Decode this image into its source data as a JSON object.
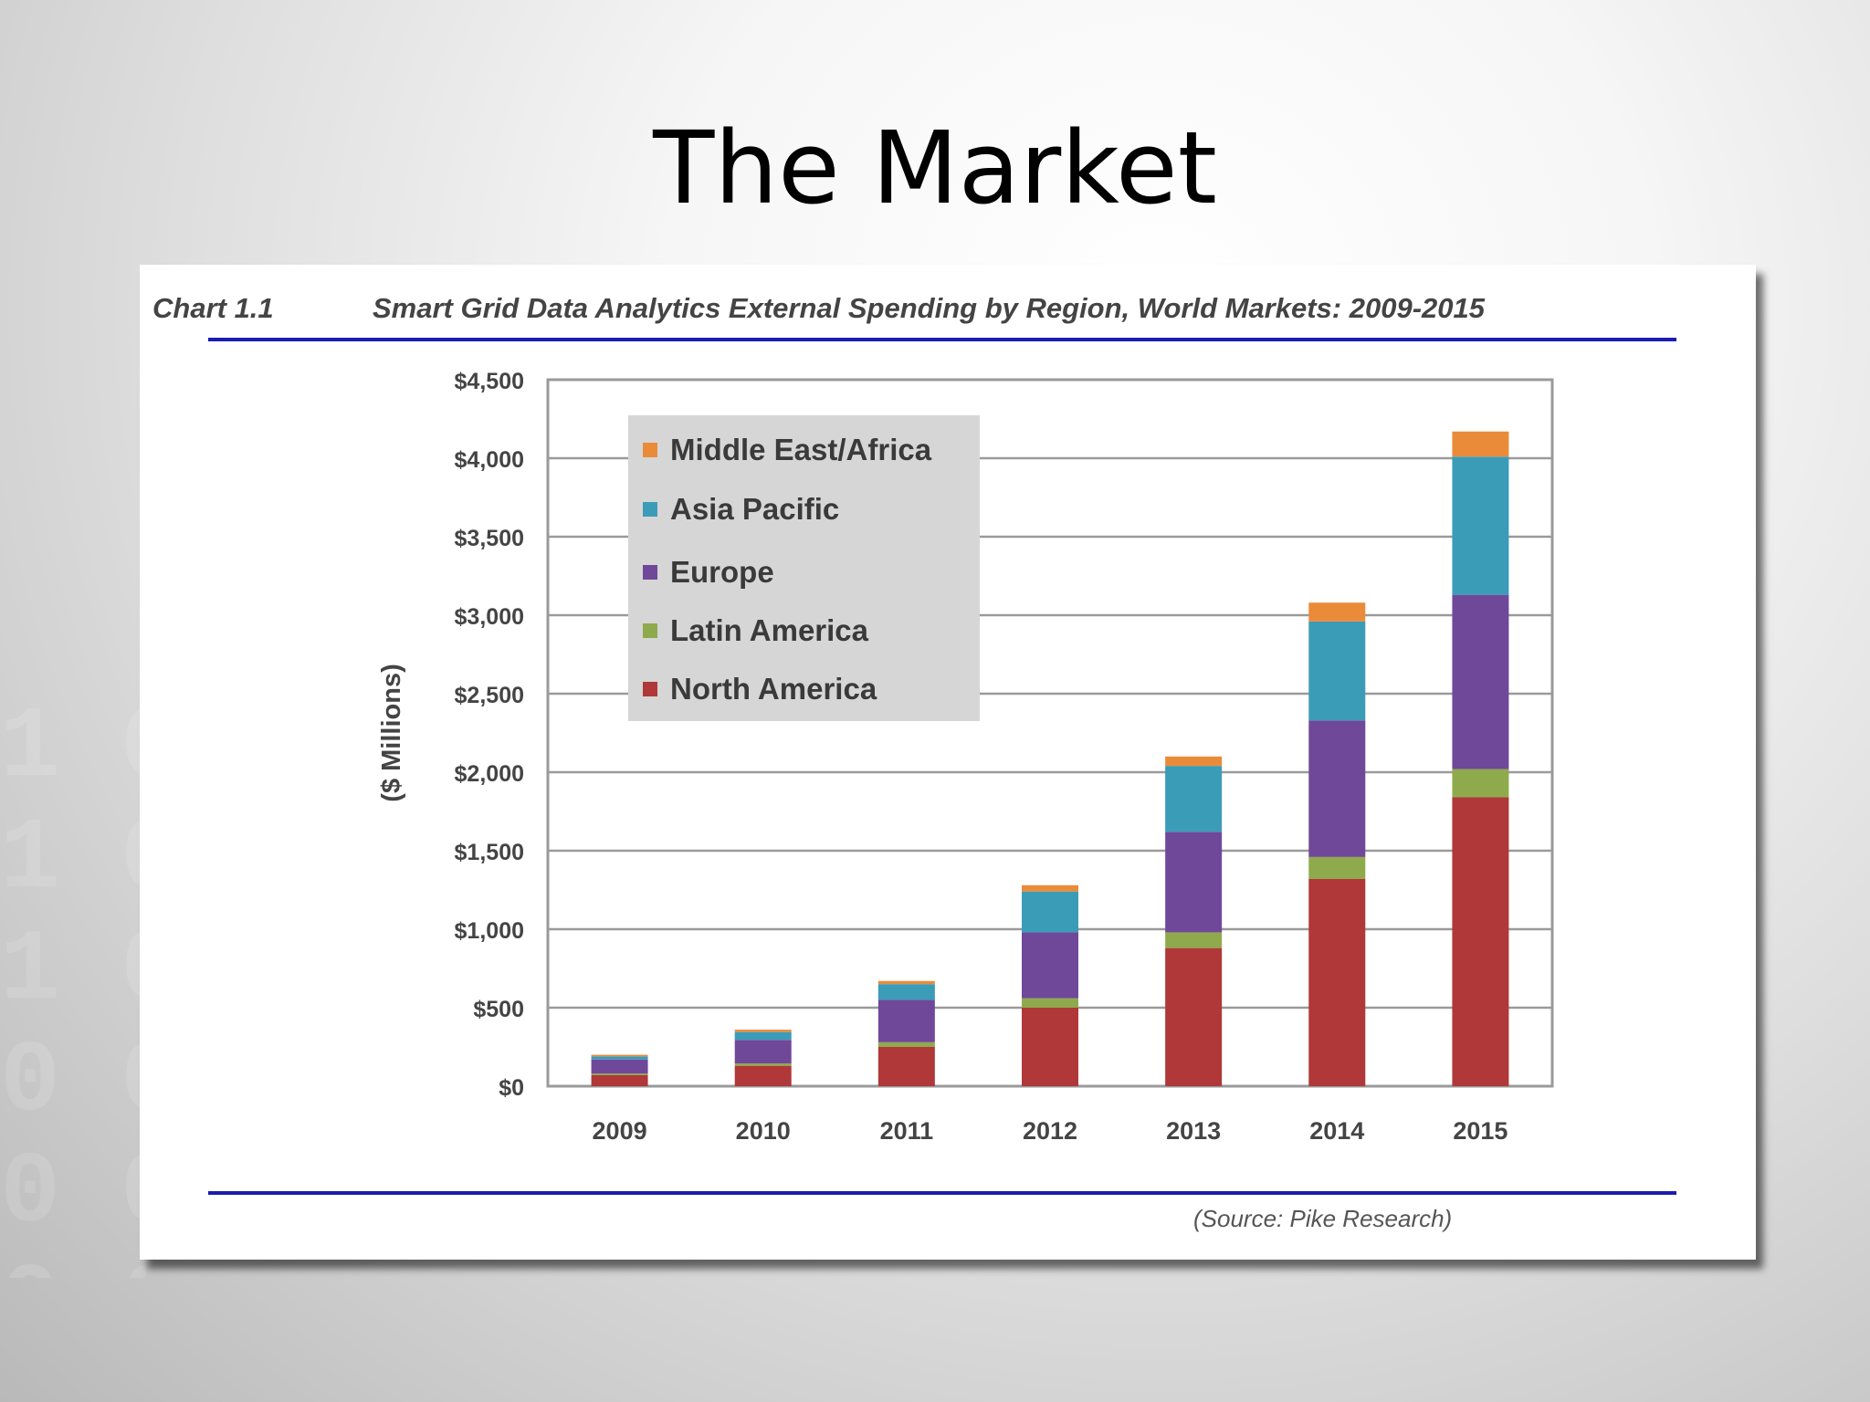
{
  "slide": {
    "title": "The Market",
    "background_deco": "1 0\n1 0\n1 0\n0 0\n0 0\n0 0"
  },
  "chart_header": {
    "number": "Chart 1.1",
    "title": "Smart Grid Data Analytics External Spending by Region, World Markets:  2009-2015"
  },
  "source": "(Source: Pike Research)",
  "chart_data": {
    "type": "bar",
    "stacked": true,
    "categories": [
      "2009",
      "2010",
      "2011",
      "2012",
      "2013",
      "2014",
      "2015"
    ],
    "ylabel": "($ Millions)",
    "ylim": [
      0,
      4500
    ],
    "yticks": [
      0,
      500,
      1000,
      1500,
      2000,
      2500,
      3000,
      3500,
      4000,
      4500
    ],
    "ytick_labels": [
      "$0",
      "$500",
      "$1,000",
      "$1,500",
      "$2,000",
      "$2,500",
      "$3,000",
      "$3,500",
      "$4,000",
      "$4,500"
    ],
    "grid": true,
    "legend_position": "top-left",
    "legend_order": [
      "Middle East/Africa",
      "Asia Pacific",
      "Europe",
      "Latin America",
      "North America"
    ],
    "series": [
      {
        "name": "North America",
        "color": "#b03838",
        "values": [
          70,
          130,
          250,
          500,
          880,
          1320,
          1840
        ]
      },
      {
        "name": "Latin America",
        "color": "#8faa4c",
        "values": [
          10,
          15,
          30,
          60,
          100,
          140,
          180
        ]
      },
      {
        "name": "Europe",
        "color": "#70489a",
        "values": [
          90,
          150,
          270,
          420,
          640,
          870,
          1110
        ]
      },
      {
        "name": "Asia Pacific",
        "color": "#3b9cb8",
        "values": [
          20,
          50,
          100,
          260,
          420,
          630,
          880
        ]
      },
      {
        "name": "Middle East/Africa",
        "color": "#ea8b3a",
        "values": [
          10,
          15,
          20,
          40,
          60,
          120,
          160
        ]
      }
    ]
  }
}
